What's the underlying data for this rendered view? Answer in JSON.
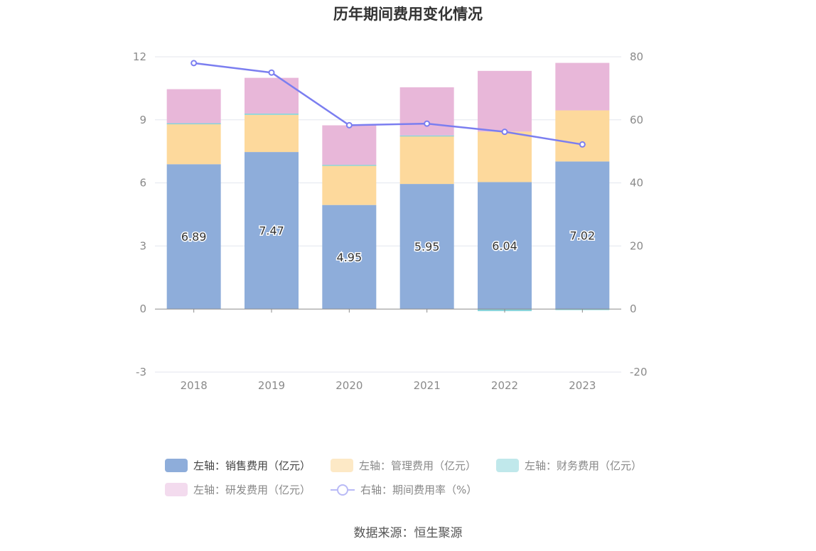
{
  "chart_data": {
    "type": "bar",
    "title": "历年期间费用变化情况",
    "categories": [
      "2018",
      "2019",
      "2020",
      "2021",
      "2022",
      "2023"
    ],
    "left_axis": {
      "min": -3,
      "max": 12,
      "ticks": [
        "-3",
        "0",
        "3",
        "6",
        "9",
        "12"
      ]
    },
    "right_axis": {
      "min": -20,
      "max": 80,
      "ticks": [
        "-20",
        "0",
        "20",
        "40",
        "60",
        "80"
      ]
    },
    "series": [
      {
        "name": "左轴：销售费用（亿元）",
        "kind": "bar",
        "axis": "left",
        "color": "#8eadda",
        "values": [
          6.89,
          7.47,
          4.95,
          5.95,
          6.04,
          7.02
        ],
        "labels": [
          "6.89",
          "7.47",
          "4.95",
          "5.95",
          "6.04",
          "7.02"
        ]
      },
      {
        "name": "左轴：管理费用（亿元）",
        "kind": "bar",
        "axis": "left",
        "color": "#fdd99c",
        "values": [
          1.93,
          1.77,
          1.9,
          2.3,
          2.4,
          2.43
        ]
      },
      {
        "name": "左轴：财务费用（亿元）",
        "kind": "bar",
        "axis": "left",
        "color": "#86d3da",
        "values": [
          0.02,
          0.06,
          0.01,
          0.01,
          -0.1,
          -0.03
        ]
      },
      {
        "name": "左轴：研发费用（亿元）",
        "kind": "bar",
        "axis": "left",
        "color": "#e8b7d9",
        "values": [
          1.62,
          1.7,
          1.88,
          2.29,
          2.89,
          2.26
        ]
      },
      {
        "name": "右轴：期间费用率（%）",
        "kind": "line",
        "axis": "right",
        "color": "#7b7ef0",
        "values": [
          78.0,
          75.0,
          58.3,
          58.8,
          56.2,
          52.2
        ]
      }
    ],
    "legend_position": "bottom",
    "grid": true
  },
  "source": "数据来源：恒生聚源"
}
